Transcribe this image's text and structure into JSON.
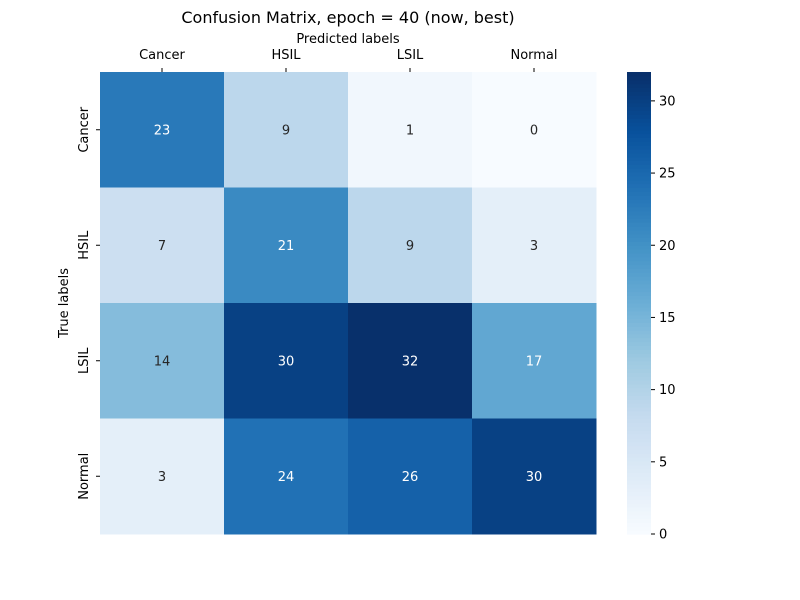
{
  "chart_data": {
    "type": "heatmap",
    "title": "Confusion Matrix, epoch = 40 (now, best)",
    "xlabel": "Predicted labels",
    "ylabel": "True labels",
    "x_categories": [
      "Cancer",
      "HSIL",
      "LSIL",
      "Normal"
    ],
    "y_categories": [
      "Cancer",
      "HSIL",
      "LSIL",
      "Normal"
    ],
    "values": [
      [
        23,
        9,
        1,
        0
      ],
      [
        7,
        21,
        9,
        3
      ],
      [
        14,
        30,
        32,
        17
      ],
      [
        3,
        24,
        26,
        30
      ]
    ],
    "vmin": 0,
    "vmax": 32,
    "colorbar_ticks": [
      0,
      5,
      10,
      15,
      20,
      25,
      30
    ],
    "colormap": "Blues",
    "x_axis_position": "top"
  }
}
